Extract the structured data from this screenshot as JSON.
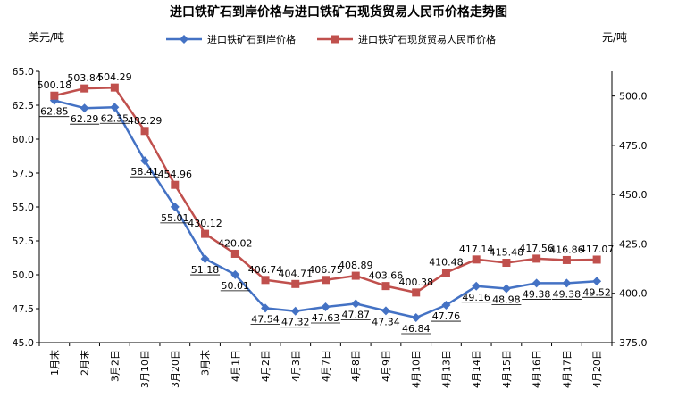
{
  "chart_data": {
    "type": "line",
    "title": "进口铁矿石到岸价格与进口铁矿石现货贸易人民币价格走势图",
    "left_unit": "美元/吨",
    "right_unit": "元/吨",
    "categories": [
      "1月末",
      "2月末",
      "3月2日",
      "3月10日",
      "3月20日",
      "3月末",
      "4月1日",
      "4月2日",
      "4月3日",
      "4月7日",
      "4月8日",
      "4月9日",
      "4月10日",
      "4月13日",
      "4月14日",
      "4月15日",
      "4月16日",
      "4月17日",
      "4月20日"
    ],
    "series": [
      {
        "name": "进口铁矿石到岸价格",
        "axis": "left",
        "color": "#4472C4",
        "marker": "diamond",
        "values": [
          62.85,
          62.29,
          62.35,
          58.41,
          55.01,
          51.18,
          50.01,
          47.54,
          47.32,
          47.63,
          47.87,
          47.34,
          46.84,
          47.76,
          49.16,
          48.98,
          49.38,
          49.38,
          49.52
        ],
        "labels": [
          "62.85",
          "62.29",
          "62.35",
          "58.41",
          "55.01",
          "51.18",
          "50.01",
          "47.54",
          "47.32",
          "47.63",
          "47.87",
          "47.34",
          "46.84",
          "47.76",
          "49.16",
          "48.98",
          "49.38",
          "49.38",
          "49.52"
        ]
      },
      {
        "name": "进口铁矿石现货贸易人民币价格",
        "axis": "right",
        "color": "#C0504D",
        "marker": "square",
        "values": [
          500.18,
          503.84,
          504.29,
          482.29,
          454.96,
          430.12,
          420.02,
          406.74,
          404.71,
          406.75,
          408.89,
          403.66,
          400.38,
          410.48,
          417.14,
          415.48,
          417.56,
          416.86,
          417.07
        ],
        "labels": [
          "500.18",
          "503.84",
          "504.29",
          "482.29",
          "454.96",
          "430.12",
          "420.02",
          "406.74",
          "404.71",
          "406.75",
          "408.89",
          "403.66",
          "400.38",
          "410.48",
          "417.14",
          "415.48",
          "417.56",
          "416.86",
          "417.07"
        ]
      }
    ],
    "left_axis": {
      "ylim": [
        45.0,
        65.0
      ],
      "ticks": [
        "45.0",
        "47.5",
        "50.0",
        "52.5",
        "55.0",
        "57.5",
        "60.0",
        "62.5",
        "65.0"
      ]
    },
    "right_axis": {
      "ylim": [
        375.0,
        512.5
      ],
      "ticks": [
        "375.0",
        "400.0",
        "425.0",
        "450.0",
        "475.0",
        "500.0"
      ]
    },
    "grid": false,
    "legend_position": "top"
  }
}
